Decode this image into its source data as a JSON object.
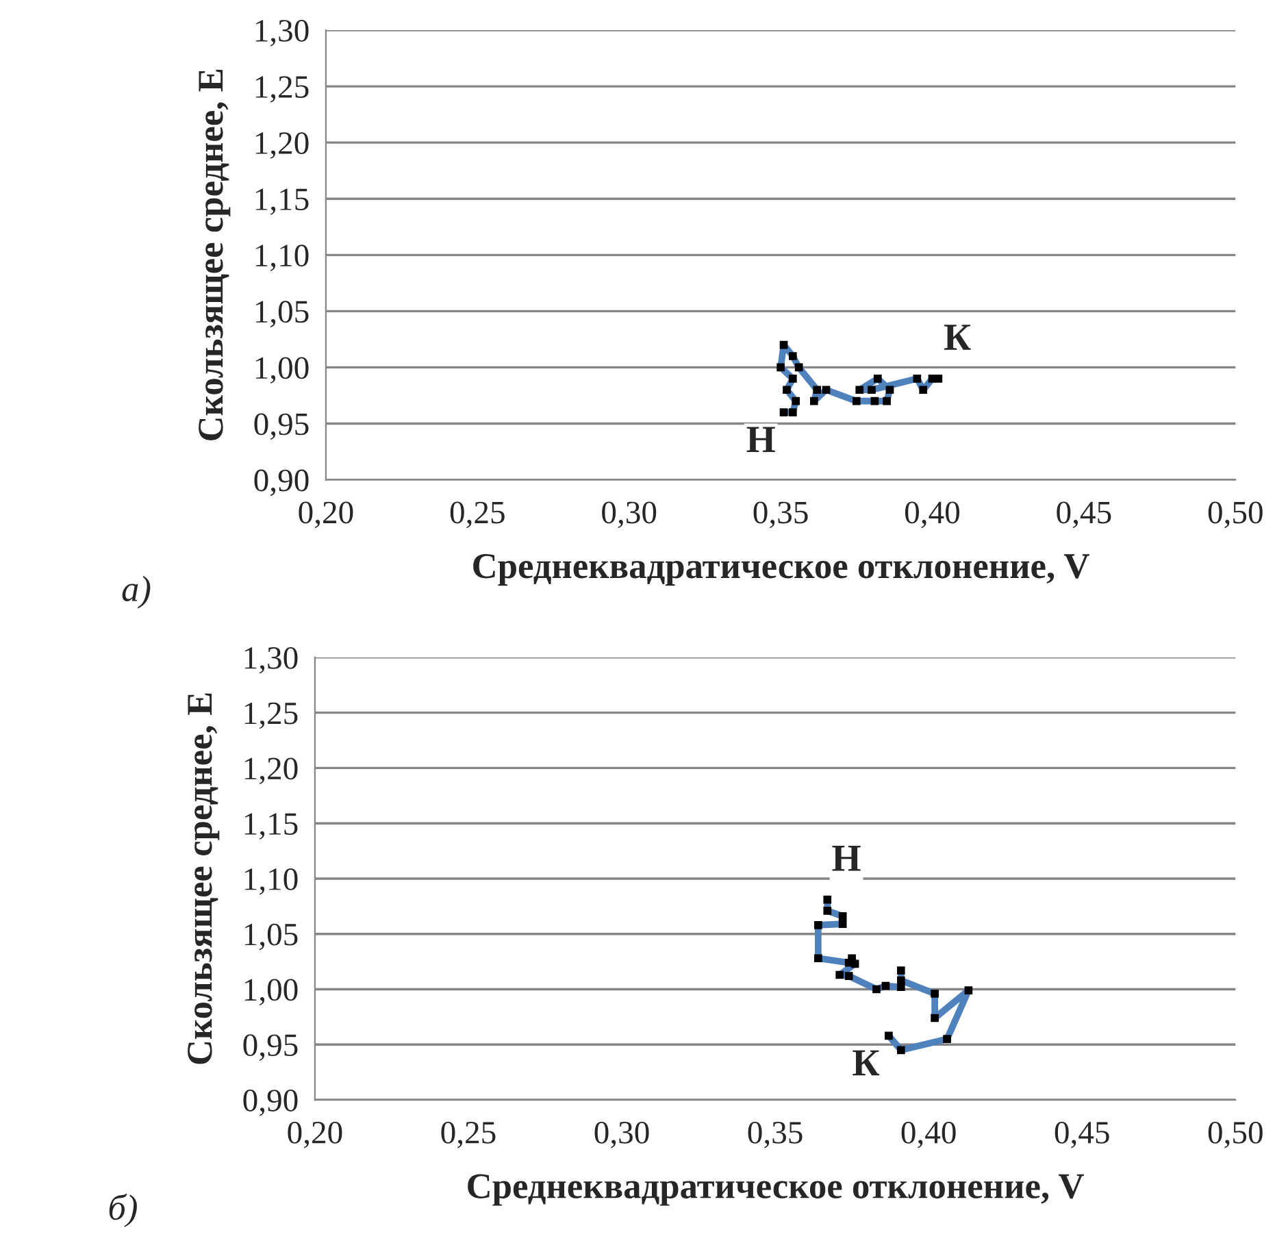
{
  "chart_data": [
    {
      "type": "line",
      "xlabel": "Среднеквадратическое отклонение, V",
      "ylabel": "Скользящее среднее, E",
      "xlim": [
        0.2,
        0.5
      ],
      "xticks": [
        {
          "value": 0.2,
          "label": "0,20"
        },
        {
          "value": 0.25,
          "label": "0,25"
        },
        {
          "value": 0.3,
          "label": "0,30"
        },
        {
          "value": 0.35,
          "label": "0,35"
        },
        {
          "value": 0.4,
          "label": "0,40"
        },
        {
          "value": 0.45,
          "label": "0,45"
        },
        {
          "value": 0.5,
          "label": "0,50"
        }
      ],
      "ylim": [
        0.9,
        1.3
      ],
      "yticks": [
        {
          "value": 0.9,
          "label": "0,90"
        },
        {
          "value": 0.95,
          "label": "0,95"
        },
        {
          "value": 1.0,
          "label": "1,00"
        },
        {
          "value": 1.05,
          "label": "1,05"
        },
        {
          "value": 1.1,
          "label": "1,10"
        },
        {
          "value": 1.15,
          "label": "1,15"
        },
        {
          "value": 1.2,
          "label": "1,20"
        },
        {
          "value": 1.25,
          "label": "1,25"
        },
        {
          "value": 1.3,
          "label": "1,30"
        }
      ],
      "grid": "y",
      "legend": false,
      "marker": "square",
      "line_style": "solid",
      "series": [
        {
          "color": "#4f81bd",
          "x": [
            0.351,
            0.354,
            0.355,
            0.352,
            0.354,
            0.35,
            0.351,
            0.354,
            0.356,
            0.362,
            0.361,
            0.365,
            0.375,
            0.381,
            0.385,
            0.386,
            0.382,
            0.376,
            0.38,
            0.395,
            0.397,
            0.4,
            0.402
          ],
          "values": [
            0.96,
            0.96,
            0.97,
            0.98,
            0.99,
            1.0,
            1.02,
            1.01,
            1.0,
            0.98,
            0.97,
            0.98,
            0.97,
            0.97,
            0.97,
            0.98,
            0.99,
            0.98,
            0.98,
            0.99,
            0.98,
            0.99,
            0.99
          ]
        }
      ],
      "annotations": [
        {
          "text": "К",
          "x": 0.402,
          "y": 0.99
        },
        {
          "text": "Н",
          "x": 0.351,
          "y": 0.96
        },
        "а)"
      ]
    },
    {
      "type": "line",
      "xlabel": "Среднеквадратическое отклонение, V",
      "ylabel": "Скользящее среднее, E",
      "xlim": [
        0.2,
        0.5
      ],
      "xticks": [
        {
          "value": 0.2,
          "label": "0,20"
        },
        {
          "value": 0.25,
          "label": "0,25"
        },
        {
          "value": 0.3,
          "label": "0,30"
        },
        {
          "value": 0.35,
          "label": "0,35"
        },
        {
          "value": 0.4,
          "label": "0,40"
        },
        {
          "value": 0.45,
          "label": "0,45"
        },
        {
          "value": 0.5,
          "label": "0,50"
        }
      ],
      "ylim": [
        0.9,
        1.3
      ],
      "yticks": [
        {
          "value": 0.9,
          "label": "0,90"
        },
        {
          "value": 0.95,
          "label": "0,95"
        },
        {
          "value": 1.0,
          "label": "1,00"
        },
        {
          "value": 1.05,
          "label": "1,05"
        },
        {
          "value": 1.1,
          "label": "1,10"
        },
        {
          "value": 1.15,
          "label": "1,15"
        },
        {
          "value": 1.2,
          "label": "1,20"
        },
        {
          "value": 1.25,
          "label": "1,25"
        },
        {
          "value": 1.3,
          "label": "1,30"
        }
      ],
      "grid": "y",
      "legend": false,
      "marker": "square",
      "line_style": "solid",
      "series": [
        {
          "color": "#4f81bd",
          "x": [
            0.367,
            0.367,
            0.372,
            0.372,
            0.364,
            0.364,
            0.374,
            0.375,
            0.376,
            0.371,
            0.374,
            0.383,
            0.386,
            0.391,
            0.391,
            0.391,
            0.402,
            0.402,
            0.413,
            0.406,
            0.391,
            0.387
          ],
          "values": [
            1.081,
            1.071,
            1.066,
            1.059,
            1.058,
            1.028,
            1.024,
            1.028,
            1.023,
            1.013,
            1.012,
            1.0,
            1.003,
            1.002,
            1.017,
            1.008,
            0.996,
            0.974,
            0.999,
            0.955,
            0.945,
            0.958
          ]
        }
      ],
      "annotations": [
        {
          "text": "Н",
          "x": 0.367,
          "y": 1.081
        },
        {
          "text": "К",
          "x": 0.387,
          "y": 0.958
        },
        "б)"
      ]
    }
  ]
}
